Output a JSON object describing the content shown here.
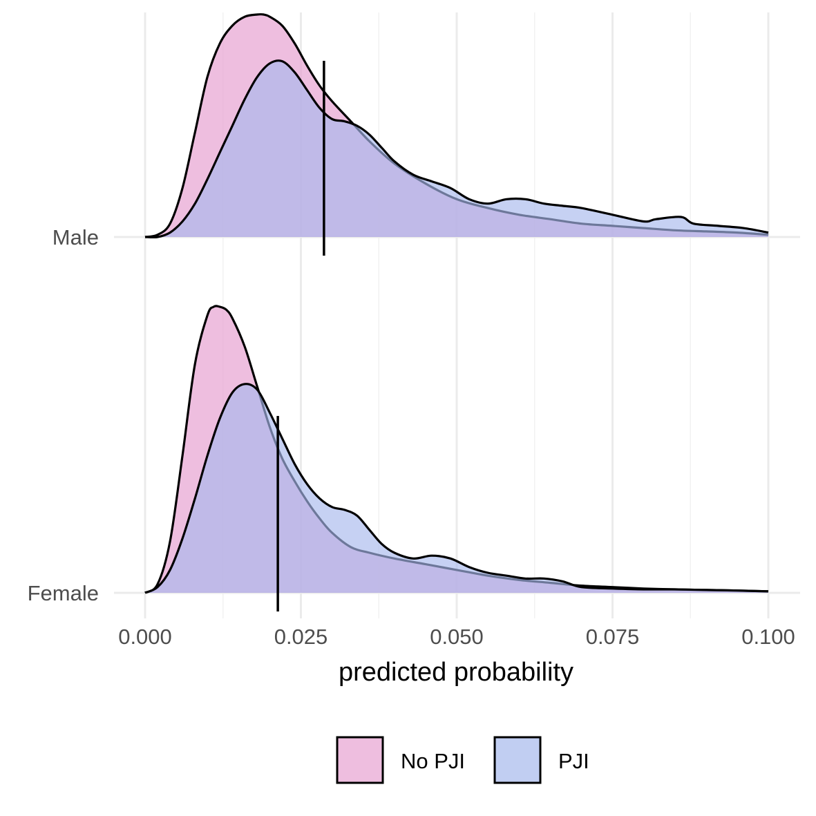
{
  "chart_data": {
    "type": "area",
    "subtype": "ridgeline-density",
    "title": "",
    "xlabel": "predicted probability",
    "ylabel": "",
    "xlim": [
      0.0,
      0.1
    ],
    "x_ticks": [
      "0.000",
      "0.025",
      "0.050",
      "0.075",
      "0.100"
    ],
    "x_tick_values": [
      0.0,
      0.025,
      0.05,
      0.075,
      0.1
    ],
    "grid": true,
    "legend_position": "bottom",
    "series": [
      {
        "name": "No PJI",
        "color": "#e7a3d1",
        "fill_opacity": 0.7
      },
      {
        "name": "PJI",
        "color": "#a7b9ec",
        "fill_opacity": 0.65
      }
    ],
    "groups": [
      {
        "label": "Male",
        "vline_x": 0.0287,
        "densities": {
          "No PJI": {
            "x": [
              0.0,
              0.002,
              0.004,
              0.006,
              0.008,
              0.01,
              0.012,
              0.014,
              0.016,
              0.018,
              0.019,
              0.02,
              0.022,
              0.024,
              0.026,
              0.028,
              0.03,
              0.033,
              0.036,
              0.04,
              0.045,
              0.05,
              0.055,
              0.06,
              0.065,
              0.07,
              0.075,
              0.08,
              0.085,
              0.09,
              0.095,
              0.1
            ],
            "y": [
              0.0,
              0.01,
              0.06,
              0.22,
              0.47,
              0.72,
              0.87,
              0.95,
              0.99,
              1.0,
              1.0,
              0.99,
              0.95,
              0.87,
              0.77,
              0.68,
              0.61,
              0.52,
              0.43,
              0.33,
              0.24,
              0.17,
              0.13,
              0.1,
              0.08,
              0.06,
              0.05,
              0.04,
              0.03,
              0.025,
              0.02,
              0.01
            ]
          },
          "PJI": {
            "x": [
              0.0,
              0.002,
              0.004,
              0.006,
              0.008,
              0.01,
              0.012,
              0.014,
              0.016,
              0.018,
              0.02,
              0.022,
              0.024,
              0.026,
              0.028,
              0.03,
              0.032,
              0.034,
              0.036,
              0.038,
              0.04,
              0.043,
              0.046,
              0.049,
              0.052,
              0.055,
              0.058,
              0.061,
              0.064,
              0.067,
              0.07,
              0.075,
              0.08,
              0.082,
              0.086,
              0.088,
              0.092,
              0.096,
              0.1
            ],
            "y": [
              0.0,
              0.0,
              0.02,
              0.07,
              0.15,
              0.26,
              0.38,
              0.5,
              0.62,
              0.72,
              0.78,
              0.79,
              0.74,
              0.66,
              0.58,
              0.53,
              0.52,
              0.5,
              0.46,
              0.4,
              0.34,
              0.28,
              0.25,
              0.22,
              0.17,
              0.15,
              0.17,
              0.17,
              0.15,
              0.14,
              0.13,
              0.1,
              0.07,
              0.08,
              0.09,
              0.06,
              0.05,
              0.04,
              0.02
            ]
          }
        }
      },
      {
        "label": "Female",
        "vline_x": 0.0213,
        "densities": {
          "No PJI": {
            "x": [
              0.0,
              0.002,
              0.004,
              0.006,
              0.008,
              0.01,
              0.011,
              0.012,
              0.013,
              0.014,
              0.016,
              0.018,
              0.02,
              0.022,
              0.024,
              0.026,
              0.028,
              0.03,
              0.033,
              0.036,
              0.04,
              0.045,
              0.05,
              0.055,
              0.06,
              0.065,
              0.07,
              0.075,
              0.08,
              0.085,
              0.09,
              0.095,
              0.1
            ],
            "y": [
              0.0,
              0.03,
              0.18,
              0.48,
              0.8,
              0.97,
              1.0,
              1.0,
              0.99,
              0.96,
              0.86,
              0.72,
              0.58,
              0.47,
              0.39,
              0.32,
              0.26,
              0.21,
              0.16,
              0.14,
              0.12,
              0.1,
              0.08,
              0.06,
              0.045,
              0.035,
              0.025,
              0.02,
              0.015,
              0.012,
              0.01,
              0.008,
              0.005
            ]
          },
          "PJI": {
            "x": [
              0.0,
              0.002,
              0.004,
              0.006,
              0.008,
              0.01,
              0.012,
              0.014,
              0.016,
              0.018,
              0.02,
              0.022,
              0.024,
              0.026,
              0.028,
              0.03,
              0.032,
              0.034,
              0.036,
              0.038,
              0.04,
              0.043,
              0.046,
              0.049,
              0.052,
              0.055,
              0.058,
              0.061,
              0.064,
              0.067,
              0.07,
              0.075,
              0.08,
              0.085,
              0.09,
              0.095,
              0.1
            ],
            "y": [
              0.0,
              0.02,
              0.08,
              0.19,
              0.33,
              0.48,
              0.61,
              0.7,
              0.73,
              0.71,
              0.63,
              0.54,
              0.45,
              0.38,
              0.33,
              0.3,
              0.29,
              0.27,
              0.22,
              0.17,
              0.14,
              0.12,
              0.13,
              0.12,
              0.09,
              0.07,
              0.06,
              0.05,
              0.05,
              0.04,
              0.02,
              0.015,
              0.012,
              0.012,
              0.01,
              0.008,
              0.005
            ]
          }
        }
      }
    ]
  }
}
